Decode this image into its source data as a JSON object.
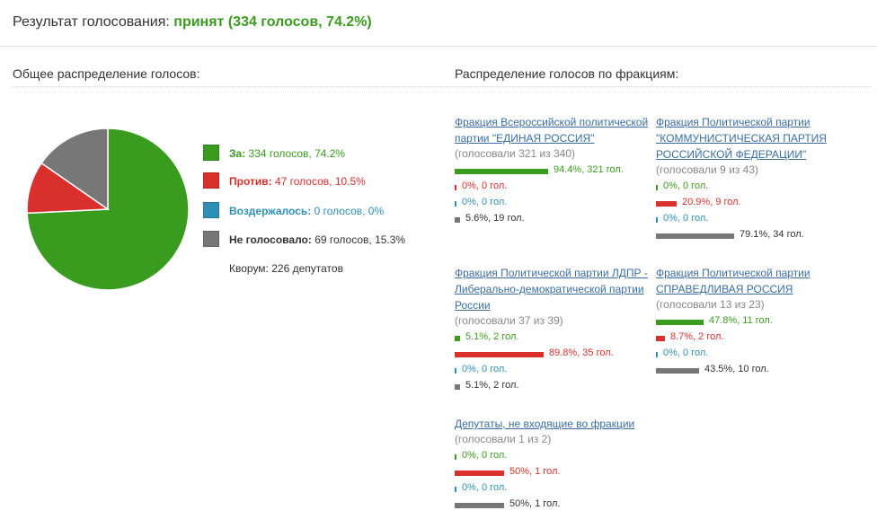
{
  "result": {
    "prefix": "Результат голосования: ",
    "status": "принят (334 голосов, 74.2%)"
  },
  "sections": {
    "overall_title": "Общее распределение голосов:",
    "factions_title": "Распределение голосов по фракциям:"
  },
  "colors": {
    "for": "#3a9c1e",
    "against": "#d9302e",
    "abstain": "#2f8fb7",
    "absent": "#777777"
  },
  "chart_data": [
    {
      "type": "pie",
      "title": "",
      "slices": [
        {
          "label": "За:",
          "votes": 334,
          "percent": 74.2,
          "text": "334 голосов, 74.2%",
          "color": "#3a9c1e"
        },
        {
          "label": "Против:",
          "votes": 47,
          "percent": 10.5,
          "text": "47 голосов, 10.5%",
          "color": "#d9302e"
        },
        {
          "label": "Воздержалось:",
          "votes": 0,
          "percent": 0,
          "text": "0 голосов, 0%",
          "color": "#2f8fb7"
        },
        {
          "label": "Не голосовало:",
          "votes": 69,
          "percent": 15.3,
          "text": "69 голосов, 15.3%",
          "color": "#777777"
        }
      ],
      "legend": "right"
    },
    {
      "type": "bar",
      "categories": [
        "За",
        "Против",
        "Воздержалось",
        "Не голосовало"
      ],
      "series": [
        {
          "name": "Фракция Всероссийской политической партии \"ЕДИНАЯ РОССИЯ\"",
          "values": [
            94.4,
            0,
            0,
            5.6
          ],
          "labels": [
            "94.4%, 321 гол.",
            "0%, 0 гол.",
            "0%, 0 гол.",
            "5.6%, 19 гол."
          ]
        },
        {
          "name": "Фракция Политической партии \"КОММУНИСТИЧЕСКАЯ ПАРТИЯ РОССИЙСКОЙ ФЕДЕРАЦИИ\"",
          "values": [
            0,
            20.9,
            0,
            79.1
          ],
          "labels": [
            "0%, 0 гол.",
            "20.9%, 9 гол.",
            "0%, 0 гол.",
            "79.1%, 34 гол."
          ]
        },
        {
          "name": "Фракция Политической партии ЛДПР - Либерально-демократической партии России",
          "values": [
            5.1,
            89.8,
            0,
            5.1
          ],
          "labels": [
            "5.1%, 2 гол.",
            "89.8%, 35 гол.",
            "0%, 0 гол.",
            "5.1%, 2 гол."
          ]
        },
        {
          "name": "Фракция Политической партии СПРАВЕДЛИВАЯ РОССИЯ",
          "values": [
            47.8,
            8.7,
            0,
            43.5
          ],
          "labels": [
            "47.8%, 11 гол.",
            "8.7%, 2 гол.",
            "0%, 0 гол.",
            "43.5%, 10 гол."
          ]
        },
        {
          "name": "Депутаты, не входящие во фракции",
          "values": [
            0,
            50,
            0,
            50
          ],
          "labels": [
            "0%, 0 гол.",
            "50%, 1 гол.",
            "0%, 0 гол.",
            "50%, 1 гол."
          ]
        }
      ],
      "xlim": [
        0,
        100
      ]
    }
  ],
  "quorum": "Кворум: 226 депутатов",
  "factions": [
    {
      "title": "Фракция Всероссийской политической партии \"ЕДИНАЯ РОССИЯ\"",
      "voted": "(голосовали 321 из 340)"
    },
    {
      "title": "Фракция Политической партии \"КОММУНИСТИЧЕСКАЯ ПАРТИЯ РОССИЙСКОЙ ФЕДЕРАЦИИ\"",
      "voted": "(голосовали 9 из 43)"
    },
    {
      "title": "Фракция Политической партии ЛДПР - Либерально-демократической партии России",
      "voted": "(голосовали 37 из 39)"
    },
    {
      "title": "Фракция Политической партии СПРАВЕДЛИВАЯ РОССИЯ",
      "voted": "(голосовали 13 из 23)"
    },
    {
      "title": "Депутаты, не входящие во фракции",
      "voted": "(голосовали 1 из 2)"
    }
  ]
}
